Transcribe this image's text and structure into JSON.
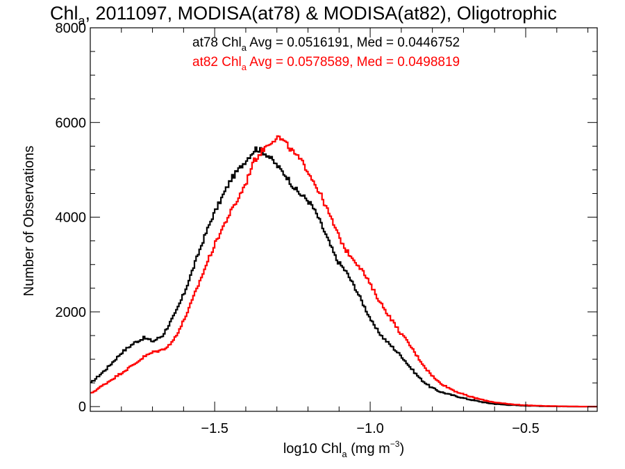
{
  "chart_data": {
    "type": "line",
    "title_parts": [
      "Chl",
      "a",
      ", 2011097, MODISA(at78) & MODISA(at82), Oligotrophic"
    ],
    "xlabel_parts": [
      "log10 Chl",
      "a",
      " (mg m",
      "−3",
      ")"
    ],
    "ylabel": "Number of Observations",
    "xlim": [
      -1.9,
      -0.27
    ],
    "ylim": [
      -100,
      8000
    ],
    "x_ticks": [
      -1.5,
      -1.0,
      -0.5
    ],
    "x_tick_labels": [
      "−1.5",
      "−1.0",
      "−0.5"
    ],
    "y_ticks": [
      0,
      2000,
      4000,
      6000,
      8000
    ],
    "y_tick_labels": [
      "0",
      "2000",
      "4000",
      "6000",
      "8000"
    ],
    "grid": false,
    "legend_placement": "top-center",
    "annotations": [
      {
        "series": "at78",
        "prefix": "at78 Chl",
        "sub": "a",
        "suffix": " Avg = 0.0516191, Med = 0.0446752",
        "color": "#000000"
      },
      {
        "series": "at82",
        "prefix": "at82 Chl",
        "sub": "a",
        "suffix": " Avg = 0.0578589, Med = 0.0498819",
        "color": "#ff0000"
      }
    ],
    "series": [
      {
        "name": "at78",
        "color": "#000000",
        "points": [
          [
            -1.9,
            500
          ],
          [
            -1.85,
            800
          ],
          [
            -1.8,
            1150
          ],
          [
            -1.76,
            1350
          ],
          [
            -1.73,
            1450
          ],
          [
            -1.7,
            1380
          ],
          [
            -1.67,
            1500
          ],
          [
            -1.63,
            1950
          ],
          [
            -1.6,
            2400
          ],
          [
            -1.57,
            2950
          ],
          [
            -1.54,
            3500
          ],
          [
            -1.51,
            4000
          ],
          [
            -1.48,
            4400
          ],
          [
            -1.45,
            4800
          ],
          [
            -1.42,
            5050
          ],
          [
            -1.39,
            5300
          ],
          [
            -1.37,
            5450
          ],
          [
            -1.35,
            5400
          ],
          [
            -1.33,
            5300
          ],
          [
            -1.31,
            5150
          ],
          [
            -1.29,
            5000
          ],
          [
            -1.27,
            4850
          ],
          [
            -1.25,
            4650
          ],
          [
            -1.23,
            4500
          ],
          [
            -1.21,
            4400
          ],
          [
            -1.19,
            4250
          ],
          [
            -1.17,
            4000
          ],
          [
            -1.15,
            3700
          ],
          [
            -1.13,
            3400
          ],
          [
            -1.11,
            3100
          ],
          [
            -1.08,
            2850
          ],
          [
            -1.05,
            2500
          ],
          [
            -1.02,
            2100
          ],
          [
            -0.99,
            1700
          ],
          [
            -0.96,
            1450
          ],
          [
            -0.93,
            1250
          ],
          [
            -0.9,
            1050
          ],
          [
            -0.87,
            800
          ],
          [
            -0.84,
            580
          ],
          [
            -0.81,
            420
          ],
          [
            -0.78,
            320
          ],
          [
            -0.75,
            260
          ],
          [
            -0.72,
            210
          ],
          [
            -0.69,
            160
          ],
          [
            -0.66,
            120
          ],
          [
            -0.63,
            80
          ],
          [
            -0.6,
            55
          ],
          [
            -0.57,
            40
          ],
          [
            -0.54,
            30
          ],
          [
            -0.51,
            20
          ],
          [
            -0.48,
            15
          ],
          [
            -0.45,
            10
          ],
          [
            -0.42,
            6
          ],
          [
            -0.39,
            4
          ],
          [
            -0.36,
            2
          ],
          [
            -0.33,
            1
          ],
          [
            -0.3,
            0
          ],
          [
            -0.27,
            0
          ]
        ]
      },
      {
        "name": "at82",
        "color": "#ff0000",
        "points": [
          [
            -1.9,
            280
          ],
          [
            -1.85,
            500
          ],
          [
            -1.8,
            720
          ],
          [
            -1.76,
            900
          ],
          [
            -1.73,
            1050
          ],
          [
            -1.7,
            1150
          ],
          [
            -1.67,
            1200
          ],
          [
            -1.64,
            1350
          ],
          [
            -1.61,
            1700
          ],
          [
            -1.58,
            2150
          ],
          [
            -1.55,
            2650
          ],
          [
            -1.52,
            3150
          ],
          [
            -1.49,
            3600
          ],
          [
            -1.46,
            4000
          ],
          [
            -1.43,
            4350
          ],
          [
            -1.4,
            4750
          ],
          [
            -1.38,
            5150
          ],
          [
            -1.35,
            5400
          ],
          [
            -1.33,
            5550
          ],
          [
            -1.31,
            5650
          ],
          [
            -1.3,
            5700
          ],
          [
            -1.28,
            5600
          ],
          [
            -1.26,
            5450
          ],
          [
            -1.24,
            5300
          ],
          [
            -1.22,
            5150
          ],
          [
            -1.2,
            4950
          ],
          [
            -1.18,
            4700
          ],
          [
            -1.16,
            4450
          ],
          [
            -1.14,
            4150
          ],
          [
            -1.12,
            3850
          ],
          [
            -1.1,
            3550
          ],
          [
            -1.08,
            3300
          ],
          [
            -1.06,
            3150
          ],
          [
            -1.03,
            2900
          ],
          [
            -1.0,
            2550
          ],
          [
            -0.97,
            2200
          ],
          [
            -0.94,
            1900
          ],
          [
            -0.91,
            1600
          ],
          [
            -0.88,
            1350
          ],
          [
            -0.85,
            1050
          ],
          [
            -0.82,
            780
          ],
          [
            -0.79,
            560
          ],
          [
            -0.76,
            430
          ],
          [
            -0.73,
            330
          ],
          [
            -0.7,
            250
          ],
          [
            -0.67,
            190
          ],
          [
            -0.64,
            140
          ],
          [
            -0.61,
            100
          ],
          [
            -0.58,
            70
          ],
          [
            -0.55,
            50
          ],
          [
            -0.52,
            35
          ],
          [
            -0.49,
            25
          ],
          [
            -0.46,
            18
          ],
          [
            -0.43,
            12
          ],
          [
            -0.4,
            8
          ],
          [
            -0.37,
            5
          ],
          [
            -0.34,
            3
          ],
          [
            -0.31,
            1
          ],
          [
            -0.27,
            0
          ]
        ]
      }
    ]
  }
}
